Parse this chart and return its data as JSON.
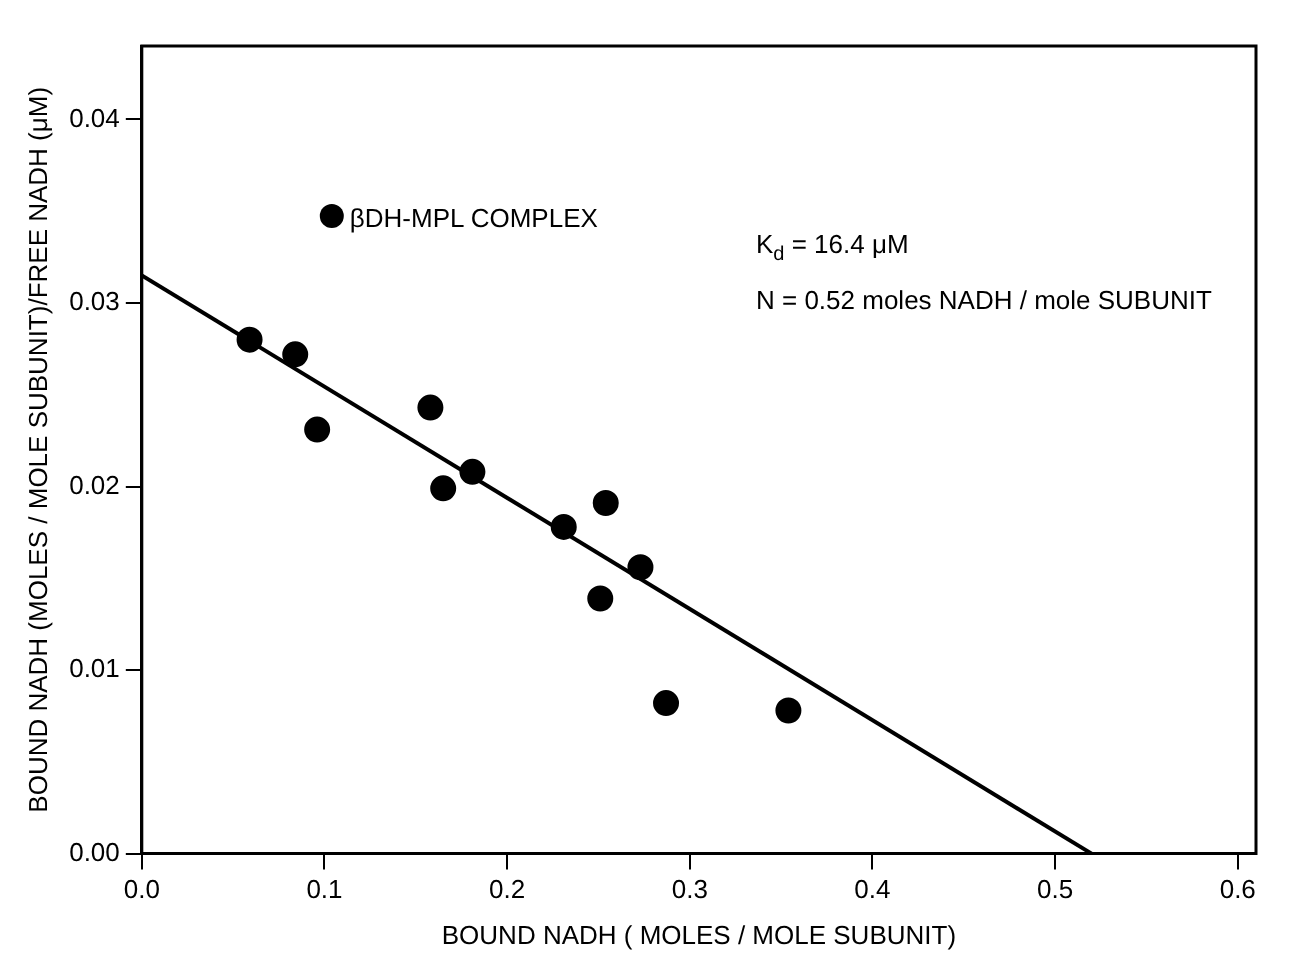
{
  "chart_data": {
    "type": "scatter",
    "xlabel": "BOUND NADH ( MOLES / MOLE SUBUNIT)",
    "ylabel": "BOUND NADH (MOLES / MOLE SUBUNIT)/FREE NADH (μM)",
    "annotations": [
      "K$_{d}$ = 16.4 μM",
      "N = 0.52 moles NADH / mole SUBUNIT"
    ],
    "series": [
      {
        "name": "βDH-MPL COMPLEX",
        "marker": "circle",
        "color": "#000000",
        "x": [
          0.059,
          0.084,
          0.096,
          0.158,
          0.165,
          0.181,
          0.231,
          0.254,
          0.251,
          0.273,
          0.287,
          0.354
        ],
        "values": [
          0.028,
          0.0272,
          0.0231,
          0.0243,
          0.0199,
          0.0208,
          0.0178,
          0.0191,
          0.0139,
          0.0156,
          0.0082,
          0.0078
        ]
      },
      {
        "type": "line",
        "marker": "none",
        "color": "#000000",
        "x": [
          0,
          0.52
        ],
        "values": [
          0.0315,
          0
        ]
      }
    ],
    "xlim": [
      0,
      0.61
    ],
    "ylim": [
      0,
      0.044
    ],
    "xticks": [
      {
        "value": 0,
        "label": "0.0"
      },
      {
        "value": 0.1,
        "label": "0.1"
      },
      {
        "value": 0.2,
        "label": "0.2"
      },
      {
        "value": 0.3,
        "label": "0.3"
      },
      {
        "value": 0.4,
        "label": "0.4"
      },
      {
        "value": 0.5,
        "label": "0.5"
      },
      {
        "value": 0.6,
        "label": "0.6"
      }
    ],
    "yticks": [
      {
        "value": 0,
        "label": "0.00"
      },
      {
        "value": 0.01,
        "label": "0.01"
      },
      {
        "value": 0.02,
        "label": "0.02"
      },
      {
        "value": 0.03,
        "label": "0.03"
      },
      {
        "value": 0.04,
        "label": "0.04"
      }
    ],
    "grid": false,
    "legend": "top left",
    "line_style": "solid"
  }
}
